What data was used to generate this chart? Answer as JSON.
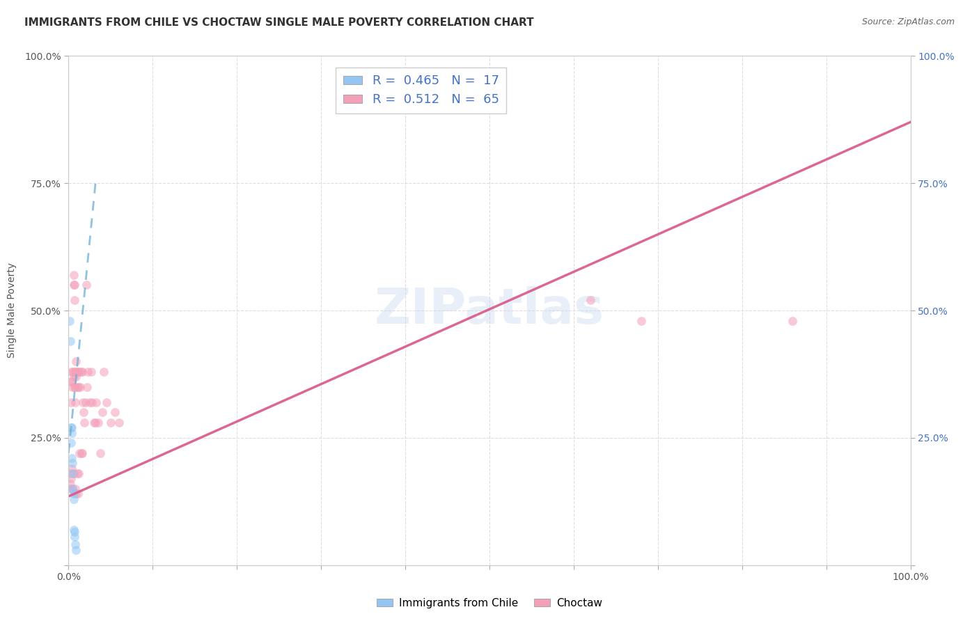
{
  "title": "IMMIGRANTS FROM CHILE VS CHOCTAW SINGLE MALE POVERTY CORRELATION CHART",
  "source": "Source: ZipAtlas.com",
  "ylabel": "Single Male Poverty",
  "xlim": [
    0,
    1
  ],
  "ylim": [
    0,
    1
  ],
  "xticks": [
    0,
    0.1,
    0.2,
    0.3,
    0.4,
    0.5,
    0.6,
    0.7,
    0.8,
    0.9,
    1.0
  ],
  "yticks": [
    0,
    0.25,
    0.5,
    0.75,
    1.0
  ],
  "xticklabels_show": [
    "0.0%",
    "100.0%"
  ],
  "yticklabels": [
    "",
    "25.0%",
    "50.0%",
    "75.0%",
    "100.0%"
  ],
  "right_yticklabels": [
    "",
    "25.0%",
    "50.0%",
    "75.0%",
    "100.0%"
  ],
  "watermark": "ZIPatlas",
  "blue_scatter_x": [
    0.001,
    0.002,
    0.003,
    0.003,
    0.004,
    0.004,
    0.004,
    0.005,
    0.005,
    0.005,
    0.006,
    0.006,
    0.006,
    0.007,
    0.007,
    0.008,
    0.009
  ],
  "blue_scatter_y": [
    0.48,
    0.44,
    0.27,
    0.24,
    0.27,
    0.26,
    0.21,
    0.2,
    0.18,
    0.15,
    0.14,
    0.13,
    0.07,
    0.065,
    0.055,
    0.04,
    0.03
  ],
  "pink_scatter_x": [
    0.001,
    0.002,
    0.002,
    0.003,
    0.003,
    0.003,
    0.004,
    0.004,
    0.004,
    0.005,
    0.005,
    0.005,
    0.006,
    0.006,
    0.006,
    0.006,
    0.007,
    0.007,
    0.007,
    0.007,
    0.008,
    0.008,
    0.008,
    0.008,
    0.009,
    0.009,
    0.009,
    0.01,
    0.01,
    0.01,
    0.011,
    0.011,
    0.012,
    0.012,
    0.013,
    0.013,
    0.014,
    0.015,
    0.015,
    0.016,
    0.016,
    0.017,
    0.018,
    0.019,
    0.02,
    0.021,
    0.022,
    0.023,
    0.025,
    0.027,
    0.028,
    0.03,
    0.032,
    0.033,
    0.035,
    0.038,
    0.04,
    0.042,
    0.045,
    0.05,
    0.055,
    0.06,
    0.62,
    0.68,
    0.86
  ],
  "pink_scatter_y": [
    0.18,
    0.16,
    0.15,
    0.36,
    0.32,
    0.17,
    0.38,
    0.36,
    0.19,
    0.38,
    0.35,
    0.15,
    0.57,
    0.55,
    0.37,
    0.18,
    0.55,
    0.52,
    0.38,
    0.35,
    0.38,
    0.35,
    0.32,
    0.15,
    0.4,
    0.37,
    0.14,
    0.38,
    0.35,
    0.18,
    0.38,
    0.14,
    0.35,
    0.18,
    0.38,
    0.22,
    0.35,
    0.38,
    0.22,
    0.38,
    0.22,
    0.32,
    0.3,
    0.28,
    0.32,
    0.55,
    0.35,
    0.38,
    0.32,
    0.38,
    0.32,
    0.28,
    0.28,
    0.32,
    0.28,
    0.22,
    0.3,
    0.38,
    0.32,
    0.28,
    0.3,
    0.28,
    0.52,
    0.48,
    0.48
  ],
  "blue_line_x": [
    0.0,
    0.032
  ],
  "blue_line_y": [
    0.22,
    0.75
  ],
  "pink_line_x": [
    0.0,
    1.0
  ],
  "pink_line_y": [
    0.135,
    0.87
  ],
  "scatter_size": 85,
  "scatter_alpha": 0.55,
  "blue_color": "#93c6f5",
  "pink_color": "#f4a0b8",
  "blue_line_color": "#6baed6",
  "pink_line_color": "#d9568a",
  "grid_color": "#dddddd",
  "background_color": "#ffffff",
  "title_fontsize": 11,
  "tick_fontsize": 10,
  "right_ytick_color": "#4472c4",
  "legend_r_color": "#4472c4"
}
